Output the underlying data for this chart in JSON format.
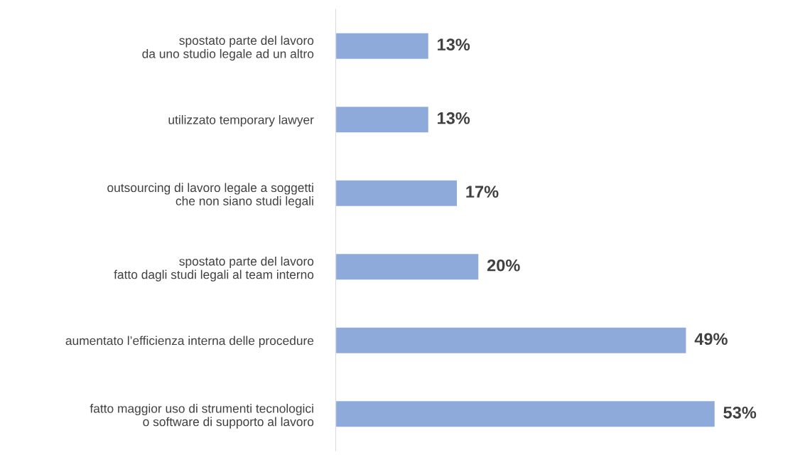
{
  "chart_data": {
    "type": "bar",
    "orientation": "horizontal",
    "categories": [
      "spostato parte del lavoro\nda uno studio legale ad un altro",
      "utilizzato temporary lawyer",
      "outsourcing di lavoro legale a soggetti\nche non siano studi legali",
      "spostato parte del lavoro\nfatto dagli studi legali al team interno",
      "aumentato l’efficienza interna delle procedure",
      "fatto maggior uso di strumenti tecnologici\no software di supporto al lavoro"
    ],
    "values": [
      13,
      13,
      17,
      20,
      49,
      53
    ],
    "value_labels": [
      "13%",
      "13%",
      "17%",
      "20%",
      "49%",
      "53%"
    ],
    "color": "#8eaadb",
    "grid": false
  }
}
